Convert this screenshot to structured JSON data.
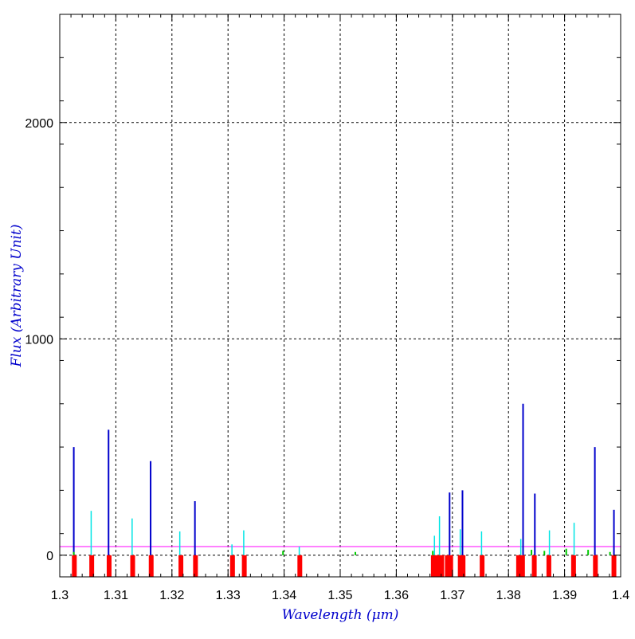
{
  "chart_data": {
    "type": "bar",
    "xlabel": "Wavelength (μm)",
    "ylabel": "Flux (Arbitrary Unit)",
    "xlim": [
      1.3,
      1.4
    ],
    "ylim": [
      -100,
      2500
    ],
    "x_ticks": [
      1.3,
      1.31,
      1.32,
      1.33,
      1.34,
      1.35,
      1.36,
      1.37,
      1.38,
      1.39,
      1.4
    ],
    "x_tick_labels": [
      "1.3",
      "1.31",
      "1.32",
      "1.33",
      "1.34",
      "1.35",
      "1.36",
      "1.37",
      "1.38",
      "1.39",
      "1.4"
    ],
    "y_ticks": [
      0,
      1000,
      2000
    ],
    "y_tick_labels": [
      "0",
      "1000",
      "2000"
    ],
    "grid": true,
    "reference_line": {
      "y": 40,
      "color": "#ff00ff"
    },
    "colors": {
      "frame": "#000000",
      "grid": "#000000",
      "axis_label": "#0000cc",
      "series1": "#0000cc",
      "series2": "#00e5e5",
      "series3": "#00cc00",
      "markers": "#ff0000"
    },
    "series": [
      {
        "color": "#0000cc",
        "x": [
          1.3025,
          1.3087,
          1.3162,
          1.3241,
          1.3695,
          1.3718,
          1.3826,
          1.3847,
          1.3954,
          1.3988
        ],
        "values": [
          500,
          580,
          435,
          250,
          290,
          300,
          700,
          285,
          500,
          210
        ]
      },
      {
        "color": "#00e5e5",
        "x": [
          1.3056,
          1.3129,
          1.3214,
          1.3307,
          1.3328,
          1.3427,
          1.3668,
          1.3677,
          1.3714,
          1.3752,
          1.3822,
          1.3873,
          1.3917
        ],
        "values": [
          205,
          170,
          110,
          50,
          115,
          40,
          90,
          180,
          120,
          110,
          75,
          115,
          150
        ]
      },
      {
        "color": "#00cc00",
        "x": [
          1.3025,
          1.3398,
          1.3527,
          1.3665,
          1.3841,
          1.3864,
          1.3903,
          1.3942,
          1.3981
        ],
        "values": [
          15,
          20,
          15,
          20,
          25,
          20,
          30,
          25,
          15
        ]
      }
    ],
    "marker_lines_x": [
      1.3026,
      1.3057,
      1.3088,
      1.313,
      1.3163,
      1.3216,
      1.3242,
      1.3308,
      1.3329,
      1.3428,
      1.3666,
      1.3673,
      1.3681,
      1.3691,
      1.3697,
      1.3714,
      1.3719,
      1.3753,
      1.3818,
      1.3825,
      1.3846,
      1.3872,
      1.3916,
      1.3955,
      1.3988
    ]
  }
}
